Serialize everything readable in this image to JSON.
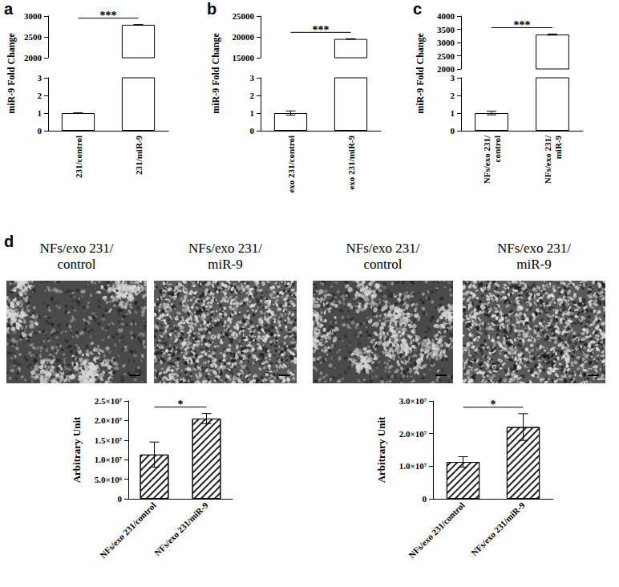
{
  "chart_data": [
    {
      "panel": "a",
      "type": "bar",
      "ylabel": "miR-9 Fold Change",
      "categories": [
        "231/control",
        "231/miR-9"
      ],
      "values": [
        1,
        2790
      ],
      "errors": [
        0.01,
        5
      ],
      "color": "#ffffff",
      "y_segments": [
        {
          "ylim": [
            0,
            3
          ],
          "yticks": [
            0,
            1,
            2,
            3
          ]
        },
        {
          "ylim": [
            2000,
            3000
          ],
          "yticks": [
            2000,
            2500,
            3000
          ]
        }
      ],
      "significance": {
        "between": [
          0,
          1
        ],
        "label": "***"
      },
      "grid": false
    },
    {
      "panel": "b",
      "type": "bar",
      "ylabel": "miR-9 Fold Change",
      "categories": [
        "exo 231/control",
        "exo 231/miR-9"
      ],
      "values": [
        1,
        19500
      ],
      "errors": [
        0.12,
        50
      ],
      "color": "#ffffff",
      "y_segments": [
        {
          "ylim": [
            0,
            3
          ],
          "yticks": [
            0,
            1,
            2,
            3
          ]
        },
        {
          "ylim": [
            15000,
            25000
          ],
          "yticks": [
            15000,
            20000,
            25000
          ]
        }
      ],
      "significance": {
        "between": [
          0,
          1
        ],
        "label": "***"
      },
      "grid": false
    },
    {
      "panel": "c",
      "type": "bar",
      "ylabel": "miR-9 Fold Change",
      "categories": [
        "NFs/exo 231/\ncontrol",
        "NFs/exo 231/\nmiR-9"
      ],
      "values": [
        1,
        3300
      ],
      "errors": [
        0.1,
        20
      ],
      "color": "#ffffff",
      "y_segments": [
        {
          "ylim": [
            0,
            3
          ],
          "yticks": [
            0,
            1,
            2,
            3
          ]
        },
        {
          "ylim": [
            2000,
            4000
          ],
          "yticks": [
            2000,
            2500,
            3000,
            3500,
            4000
          ]
        }
      ],
      "significance": {
        "between": [
          0,
          1
        ],
        "label": "***"
      },
      "grid": false
    },
    {
      "type": "bar",
      "ylabel": "Arbitrary Unit",
      "categories": [
        "NFs/exo 231/control",
        "NFs/exo 231/miR-9"
      ],
      "values": [
        11300000,
        20500000
      ],
      "errors": [
        3200000,
        1300000
      ],
      "color": "#ffffff",
      "ylim": [
        0,
        25000000
      ],
      "yticks": [
        0,
        {
          "value": 5000000,
          "label": "5.0×10⁶"
        },
        {
          "value": 10000000,
          "label": "1.0×10⁷"
        },
        {
          "value": 15000000,
          "label": "1.5×10⁷"
        },
        {
          "value": 20000000,
          "label": "2.0×10⁷"
        },
        {
          "value": 25000000,
          "label": "2.5×10⁷"
        }
      ],
      "significance": {
        "between": [
          0,
          1
        ],
        "label": "*"
      },
      "grid": false
    },
    {
      "type": "bar",
      "ylabel": "Arbitrary Unit",
      "categories": [
        "NFs/exo 231/control",
        "NFs/exo 231/miR-9"
      ],
      "values": [
        11300000,
        22000000
      ],
      "errors": [
        1600000,
        4100000
      ],
      "color": "#ffffff",
      "ylim": [
        0,
        30000000
      ],
      "yticks": [
        0,
        {
          "value": 10000000,
          "label": "1.0×10⁷"
        },
        {
          "value": 20000000,
          "label": "2.0×10⁷"
        },
        {
          "value": 30000000,
          "label": "3.0×10⁷"
        }
      ],
      "significance": {
        "between": [
          0,
          1
        ],
        "label": "*"
      },
      "grid": false
    }
  ],
  "figure_d": {
    "panel": "d",
    "images": [
      {
        "caption": [
          "NFs/exo 231/",
          "control"
        ]
      },
      {
        "caption": [
          "NFs/exo 231/",
          "miR-9"
        ]
      },
      {
        "caption": [
          "NFs/exo 231/",
          "control"
        ]
      },
      {
        "caption": [
          "NFs/exo 231/",
          "miR-9"
        ]
      }
    ]
  }
}
